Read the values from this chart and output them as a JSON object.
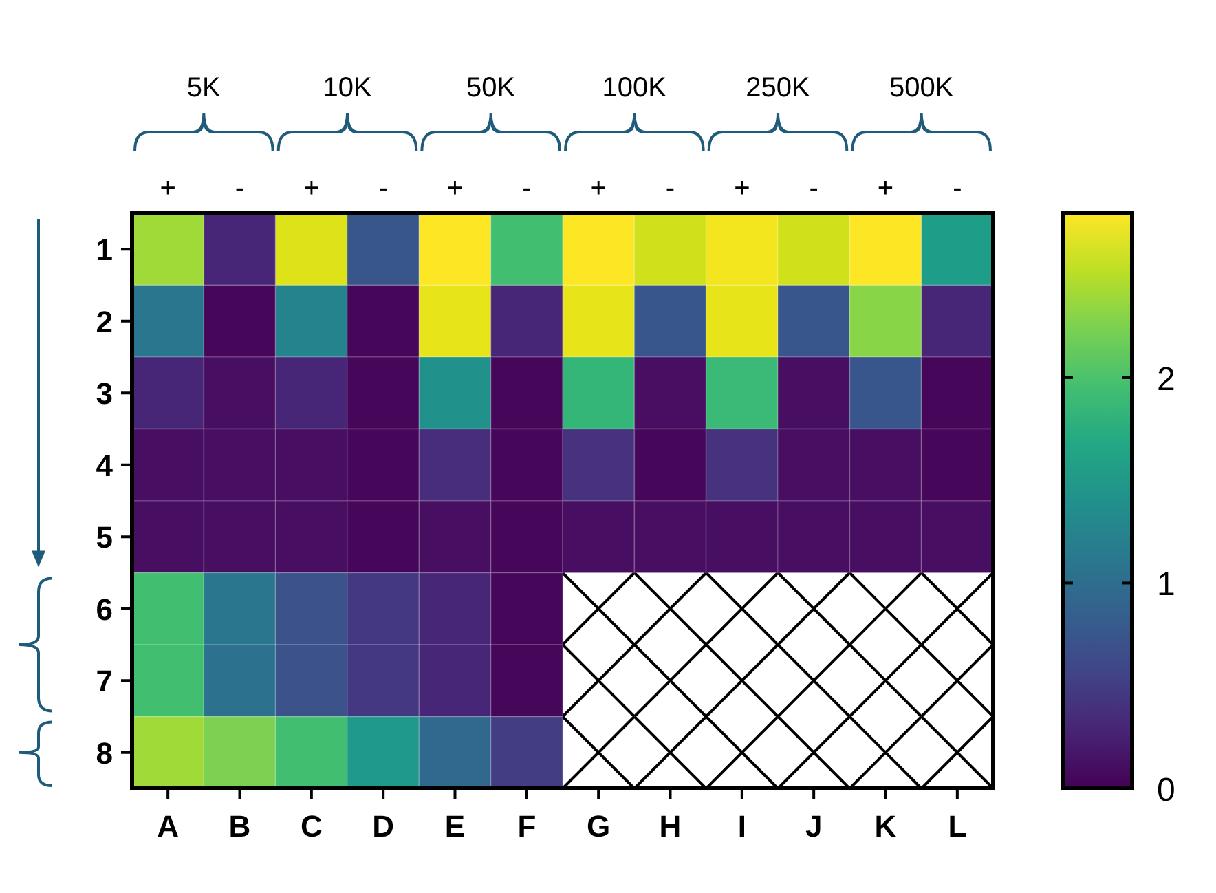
{
  "chart_data": {
    "type": "heatmap",
    "categories": [
      "A",
      "B",
      "C",
      "D",
      "E",
      "F",
      "G",
      "H",
      "I",
      "J",
      "K",
      "L"
    ],
    "y_categories": [
      "1",
      "2",
      "3",
      "4",
      "5",
      "6",
      "7",
      "8"
    ],
    "cells": [
      [
        2.4,
        0.3,
        2.65,
        0.75,
        2.8,
        1.95,
        2.8,
        2.6,
        2.75,
        2.6,
        2.8,
        1.55
      ],
      [
        1.1,
        0.05,
        1.25,
        0.05,
        2.7,
        0.3,
        2.7,
        0.75,
        2.7,
        0.75,
        2.3,
        0.3
      ],
      [
        0.3,
        0.1,
        0.3,
        0.05,
        1.4,
        0.05,
        1.85,
        0.1,
        1.9,
        0.1,
        0.75,
        0.05
      ],
      [
        0.1,
        0.1,
        0.1,
        0.05,
        0.35,
        0.05,
        0.4,
        0.05,
        0.4,
        0.1,
        0.1,
        0.05
      ],
      [
        0.1,
        0.1,
        0.1,
        0.05,
        0.1,
        0.05,
        0.1,
        0.1,
        0.1,
        0.1,
        0.1,
        0.1
      ],
      [
        1.95,
        1.1,
        0.7,
        0.45,
        0.3,
        0.05,
        null,
        null,
        null,
        null,
        null,
        null
      ],
      [
        1.95,
        1.05,
        0.7,
        0.45,
        0.3,
        0.05,
        null,
        null,
        null,
        null,
        null,
        null
      ],
      [
        2.4,
        2.25,
        1.95,
        1.5,
        0.95,
        0.5,
        null,
        null,
        null,
        null,
        null,
        null
      ]
    ],
    "clim": [
      0,
      2.8
    ],
    "cticks": [
      0,
      1,
      2
    ],
    "annotations": [
      "5K",
      "10K",
      "50K",
      "100K",
      "250K",
      "500K",
      "+",
      "-",
      "+",
      "-",
      "+",
      "-",
      "+",
      "-",
      "+",
      "-",
      "+",
      "-"
    ]
  }
}
